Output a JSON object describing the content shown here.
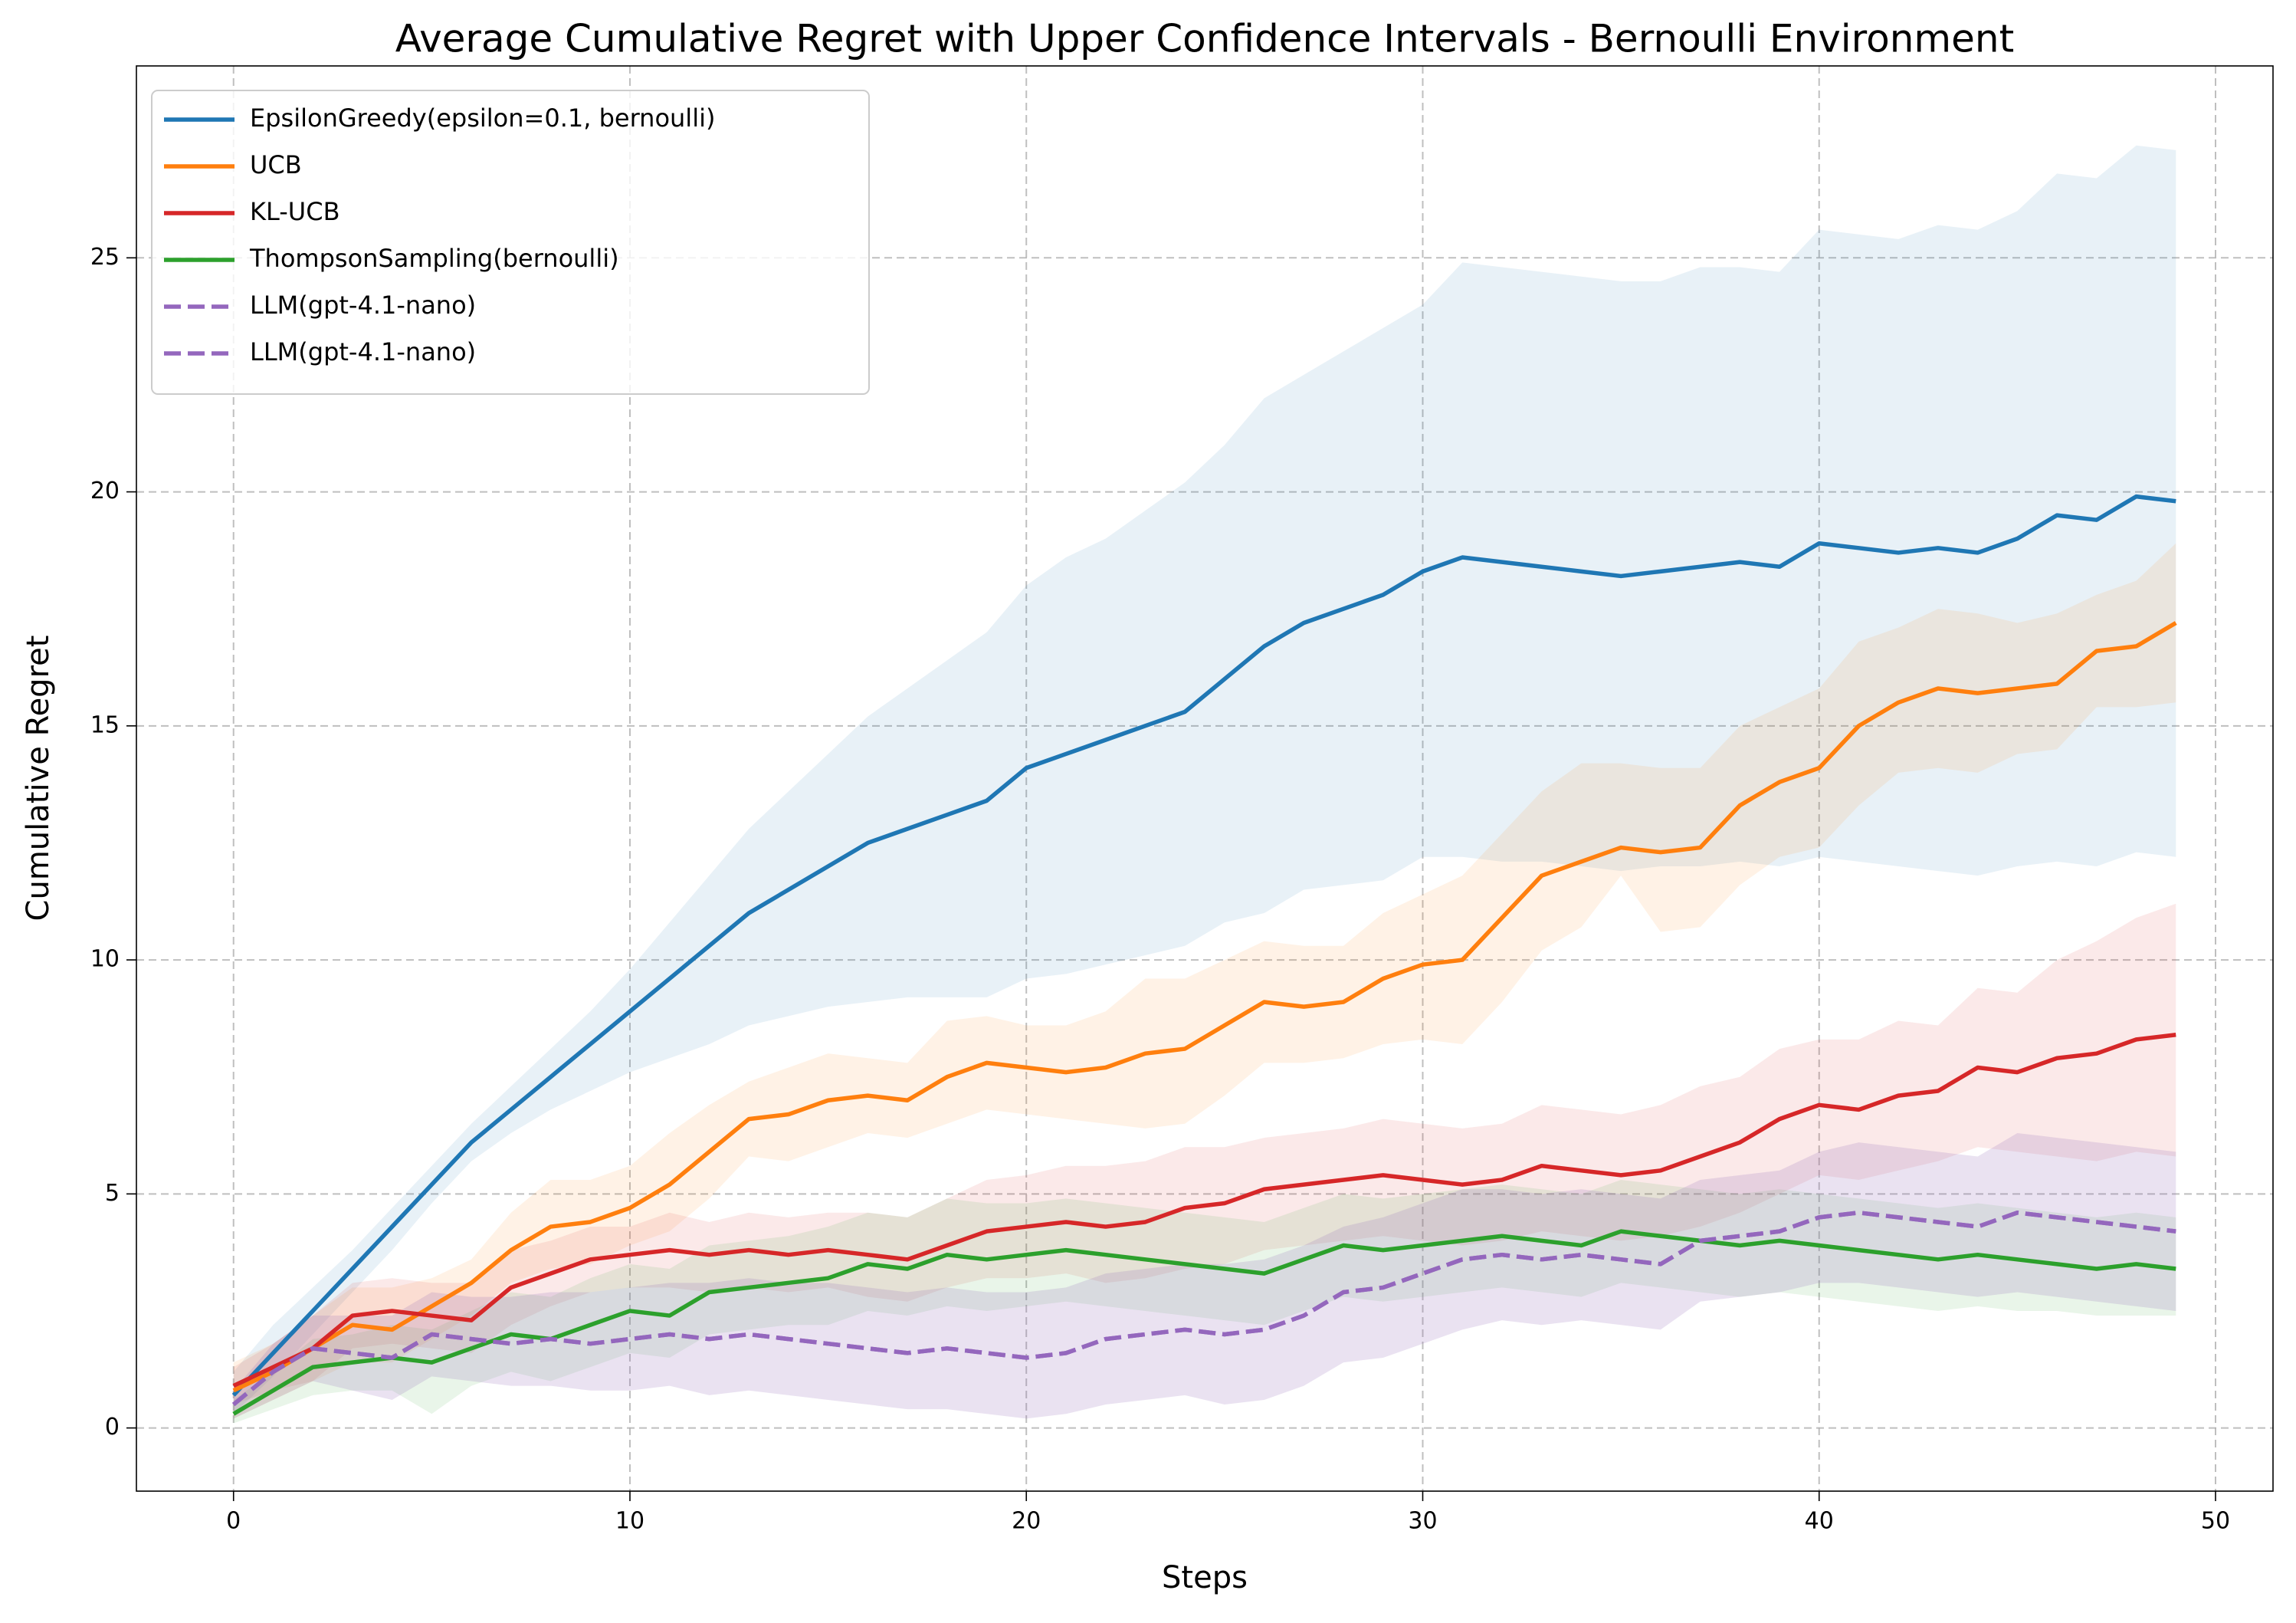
{
  "chart_data": {
    "type": "line",
    "title": "Average Cumulative Regret with Upper Confidence Intervals - Bernoulli Environment",
    "x_label": "Steps",
    "y_label": "Cumulative Regret",
    "x": [
      0,
      1,
      2,
      3,
      4,
      5,
      6,
      7,
      8,
      9,
      10,
      11,
      12,
      13,
      14,
      15,
      16,
      17,
      18,
      19,
      20,
      21,
      22,
      23,
      24,
      25,
      26,
      27,
      28,
      29,
      30,
      31,
      32,
      33,
      34,
      35,
      36,
      37,
      38,
      39,
      40,
      41,
      42,
      43,
      44,
      45,
      46,
      47,
      48,
      49
    ],
    "xlim": [
      -2.45,
      51.45
    ],
    "ylim": [
      -1.35,
      29.1
    ],
    "xticks": [
      0,
      10,
      20,
      30,
      40,
      50
    ],
    "yticks": [
      0,
      5,
      10,
      15,
      20,
      25
    ],
    "grid": true,
    "legend": "upper left",
    "series": [
      {
        "name": "EpsilonGreedy(epsilon=0.1, bernoulli)",
        "color": "#1f77b4",
        "linestyle": "solid",
        "values": [
          0.7,
          1.6,
          2.5,
          3.4,
          4.3,
          5.2,
          6.1,
          6.8,
          7.5,
          8.2,
          8.9,
          9.6,
          10.3,
          11.0,
          11.5,
          12.0,
          12.5,
          12.8,
          13.1,
          13.4,
          14.1,
          14.4,
          14.7,
          15.0,
          15.3,
          16.0,
          16.7,
          17.2,
          17.5,
          17.8,
          18.3,
          18.6,
          18.5,
          18.4,
          18.3,
          18.2,
          18.3,
          18.4,
          18.5,
          18.4,
          18.9,
          18.8,
          18.7,
          18.8,
          18.7,
          19.0,
          19.5,
          19.4,
          19.9,
          19.8
        ],
        "upper": [
          1.2,
          2.2,
          3.0,
          3.8,
          4.7,
          5.6,
          6.5,
          7.3,
          8.1,
          8.9,
          9.8,
          10.8,
          11.8,
          12.8,
          13.6,
          14.4,
          15.2,
          15.8,
          16.4,
          17.0,
          18.0,
          18.6,
          19.0,
          19.6,
          20.2,
          21.0,
          22.0,
          22.5,
          23.0,
          23.5,
          24.0,
          24.9,
          24.8,
          24.7,
          24.6,
          24.5,
          24.5,
          24.8,
          24.8,
          24.7,
          25.6,
          25.5,
          25.4,
          25.7,
          25.6,
          26.0,
          26.8,
          26.7,
          27.4,
          27.3
        ],
        "lower": [
          0.3,
          1.1,
          2.0,
          2.9,
          3.8,
          4.8,
          5.7,
          6.3,
          6.8,
          7.2,
          7.6,
          7.9,
          8.2,
          8.6,
          8.8,
          9.0,
          9.1,
          9.2,
          9.2,
          9.2,
          9.6,
          9.7,
          9.9,
          10.1,
          10.3,
          10.8,
          11.0,
          11.5,
          11.6,
          11.7,
          12.2,
          12.2,
          12.1,
          12.1,
          12.0,
          11.9,
          12.0,
          12.0,
          12.1,
          12.0,
          12.2,
          12.1,
          12.0,
          11.9,
          11.8,
          12.0,
          12.1,
          12.0,
          12.3,
          12.2
        ]
      },
      {
        "name": "UCB",
        "color": "#ff7f0e",
        "linestyle": "solid",
        "values": [
          0.8,
          1.2,
          1.7,
          2.2,
          2.1,
          2.6,
          3.1,
          3.8,
          4.3,
          4.4,
          4.7,
          5.2,
          5.9,
          6.6,
          6.7,
          7.0,
          7.1,
          7.0,
          7.5,
          7.8,
          7.7,
          7.6,
          7.7,
          8.0,
          8.1,
          8.6,
          9.1,
          9.0,
          9.1,
          9.6,
          9.9,
          10.0,
          10.9,
          11.8,
          12.1,
          12.4,
          12.3,
          12.4,
          13.3,
          13.8,
          14.1,
          15.0,
          15.5,
          15.8,
          15.7,
          15.8,
          15.9,
          16.6,
          16.7,
          17.2
        ],
        "upper": [
          1.4,
          1.8,
          2.4,
          3.0,
          3.0,
          3.2,
          3.6,
          4.6,
          5.3,
          5.3,
          5.6,
          6.3,
          6.9,
          7.4,
          7.7,
          8.0,
          7.9,
          7.8,
          8.7,
          8.8,
          8.6,
          8.6,
          8.9,
          9.6,
          9.6,
          10.0,
          10.4,
          10.3,
          10.3,
          11.0,
          11.4,
          11.8,
          12.7,
          13.6,
          14.2,
          14.2,
          14.1,
          14.1,
          15.0,
          15.4,
          15.8,
          16.8,
          17.1,
          17.5,
          17.4,
          17.2,
          17.4,
          17.8,
          18.1,
          18.9
        ],
        "lower": [
          0.2,
          0.6,
          1.0,
          1.4,
          1.4,
          1.9,
          2.4,
          3.1,
          3.4,
          3.5,
          3.9,
          4.2,
          4.9,
          5.8,
          5.7,
          6.0,
          6.3,
          6.2,
          6.5,
          6.8,
          6.7,
          6.6,
          6.5,
          6.4,
          6.5,
          7.1,
          7.8,
          7.8,
          7.9,
          8.2,
          8.3,
          8.2,
          9.1,
          10.2,
          10.7,
          11.8,
          10.6,
          10.7,
          11.6,
          12.2,
          12.4,
          13.3,
          14.0,
          14.1,
          14.0,
          14.4,
          14.5,
          15.4,
          15.4,
          15.5
        ]
      },
      {
        "name": "KL-UCB",
        "color": "#d62728",
        "linestyle": "solid",
        "values": [
          0.9,
          1.3,
          1.7,
          2.4,
          2.5,
          2.4,
          2.3,
          3.0,
          3.3,
          3.6,
          3.7,
          3.8,
          3.7,
          3.8,
          3.7,
          3.8,
          3.7,
          3.6,
          3.9,
          4.2,
          4.3,
          4.4,
          4.3,
          4.4,
          4.7,
          4.8,
          5.1,
          5.2,
          5.3,
          5.4,
          5.3,
          5.2,
          5.3,
          5.6,
          5.5,
          5.4,
          5.5,
          5.8,
          6.1,
          6.6,
          6.9,
          6.8,
          7.1,
          7.2,
          7.7,
          7.6,
          7.9,
          8.0,
          8.3,
          8.4
        ],
        "upper": [
          1.3,
          1.8,
          2.4,
          3.1,
          3.2,
          3.1,
          3.1,
          3.8,
          4.0,
          4.3,
          4.3,
          4.6,
          4.4,
          4.6,
          4.5,
          4.6,
          4.6,
          4.5,
          4.9,
          5.3,
          5.4,
          5.6,
          5.6,
          5.7,
          6.0,
          6.0,
          6.2,
          6.3,
          6.4,
          6.6,
          6.5,
          6.4,
          6.5,
          6.9,
          6.8,
          6.7,
          6.9,
          7.3,
          7.5,
          8.1,
          8.3,
          8.3,
          8.7,
          8.6,
          9.4,
          9.3,
          10.0,
          10.4,
          10.9,
          11.2
        ],
        "lower": [
          0.5,
          0.8,
          1.0,
          1.7,
          1.8,
          1.7,
          1.6,
          2.2,
          2.6,
          2.9,
          3.0,
          3.0,
          2.9,
          3.0,
          2.9,
          3.0,
          2.8,
          2.7,
          3.0,
          3.2,
          3.2,
          3.3,
          3.1,
          3.2,
          3.4,
          3.5,
          3.8,
          3.9,
          4.0,
          4.1,
          4.0,
          3.9,
          4.0,
          4.2,
          4.1,
          4.0,
          4.1,
          4.3,
          4.6,
          5.0,
          5.4,
          5.3,
          5.5,
          5.7,
          6.0,
          5.9,
          5.8,
          5.7,
          5.9,
          5.8
        ]
      },
      {
        "name": "ThompsonSampling(bernoulli)",
        "color": "#2ca02c",
        "linestyle": "solid",
        "values": [
          0.3,
          0.8,
          1.3,
          1.4,
          1.5,
          1.4,
          1.7,
          2.0,
          1.9,
          2.2,
          2.5,
          2.4,
          2.9,
          3.0,
          3.1,
          3.2,
          3.5,
          3.4,
          3.7,
          3.6,
          3.7,
          3.8,
          3.7,
          3.6,
          3.5,
          3.4,
          3.3,
          3.6,
          3.9,
          3.8,
          3.9,
          4.0,
          4.1,
          4.0,
          3.9,
          4.2,
          4.1,
          4.0,
          3.9,
          4.0,
          3.9,
          3.8,
          3.7,
          3.6,
          3.7,
          3.6,
          3.5,
          3.4,
          3.5,
          3.4
        ],
        "upper": [
          0.6,
          1.2,
          1.9,
          2.0,
          2.2,
          2.1,
          2.5,
          2.9,
          2.8,
          3.2,
          3.5,
          3.4,
          3.9,
          4.0,
          4.1,
          4.3,
          4.6,
          4.5,
          4.9,
          4.8,
          4.8,
          4.9,
          4.8,
          4.7,
          4.6,
          4.5,
          4.4,
          4.7,
          5.0,
          4.9,
          5.0,
          5.1,
          5.2,
          5.1,
          5.0,
          5.3,
          5.2,
          5.1,
          5.0,
          5.1,
          5.0,
          4.9,
          4.8,
          4.7,
          4.8,
          4.7,
          4.6,
          4.5,
          4.6,
          4.5
        ],
        "lower": [
          0.1,
          0.4,
          0.7,
          0.8,
          0.8,
          0.3,
          0.9,
          1.2,
          1.0,
          1.3,
          1.6,
          1.5,
          2.0,
          2.1,
          2.2,
          2.2,
          2.5,
          2.4,
          2.6,
          2.5,
          2.6,
          2.7,
          2.6,
          2.5,
          2.4,
          2.3,
          2.2,
          2.5,
          2.8,
          2.7,
          2.8,
          2.9,
          3.0,
          2.9,
          2.8,
          3.1,
          3.0,
          2.9,
          2.8,
          2.9,
          2.8,
          2.7,
          2.6,
          2.5,
          2.6,
          2.5,
          2.5,
          2.4,
          2.4,
          2.4
        ]
      },
      {
        "name": "LLM(gpt-4.1-nano)",
        "color": "#9467bd",
        "linestyle": "dashed",
        "values": [
          0.5,
          1.2,
          1.7,
          1.6,
          1.5,
          2.0,
          1.9,
          1.8,
          1.9,
          1.8,
          1.9,
          2.0,
          1.9,
          2.0,
          1.9,
          1.8,
          1.7,
          1.6,
          1.7,
          1.6,
          1.5,
          1.6,
          1.9,
          2.0,
          2.1,
          2.0,
          2.1,
          2.4,
          2.9,
          3.0,
          3.3,
          3.6,
          3.7,
          3.6,
          3.7,
          3.6,
          3.5,
          4.0,
          4.1,
          4.2,
          4.5,
          4.6,
          4.5,
          4.4,
          4.3,
          4.6,
          4.5,
          4.4,
          4.3,
          4.2
        ],
        "upper": [
          0.8,
          1.8,
          2.4,
          2.4,
          2.4,
          2.9,
          2.8,
          2.8,
          2.9,
          2.9,
          3.0,
          3.1,
          3.1,
          3.2,
          3.1,
          3.1,
          3.0,
          2.9,
          3.0,
          2.9,
          2.9,
          3.0,
          3.3,
          3.4,
          3.5,
          3.5,
          3.6,
          3.9,
          4.3,
          4.5,
          4.8,
          5.1,
          5.1,
          5.0,
          5.1,
          5.0,
          4.9,
          5.3,
          5.4,
          5.5,
          5.9,
          6.1,
          6.0,
          5.9,
          5.8,
          6.3,
          6.2,
          6.1,
          6.0,
          5.9
        ],
        "lower": [
          0.2,
          0.6,
          1.0,
          0.8,
          0.6,
          1.1,
          1.0,
          0.9,
          0.9,
          0.8,
          0.8,
          0.9,
          0.7,
          0.8,
          0.7,
          0.6,
          0.5,
          0.4,
          0.4,
          0.3,
          0.2,
          0.3,
          0.5,
          0.6,
          0.7,
          0.5,
          0.6,
          0.9,
          1.4,
          1.5,
          1.8,
          2.1,
          2.3,
          2.2,
          2.3,
          2.2,
          2.1,
          2.7,
          2.8,
          2.9,
          3.1,
          3.1,
          3.0,
          2.9,
          2.8,
          2.9,
          2.8,
          2.7,
          2.6,
          2.5
        ]
      },
      {
        "name": "LLM(gpt-4.1-nano)",
        "color": "#9467bd",
        "linestyle": "dashed",
        "values": [
          0.5,
          1.2,
          1.7,
          1.6,
          1.5,
          2.0,
          1.9,
          1.8,
          1.9,
          1.8,
          1.9,
          2.0,
          1.9,
          2.0,
          1.9,
          1.8,
          1.7,
          1.6,
          1.7,
          1.6,
          1.5,
          1.6,
          1.9,
          2.0,
          2.1,
          2.0,
          2.1,
          2.4,
          2.9,
          3.0,
          3.3,
          3.6,
          3.7,
          3.6,
          3.7,
          3.6,
          3.5,
          4.0,
          4.1,
          4.2,
          4.5,
          4.6,
          4.5,
          4.4,
          4.3,
          4.6,
          4.5,
          4.4,
          4.3,
          4.2
        ],
        "upper": [
          0.8,
          1.8,
          2.4,
          2.4,
          2.4,
          2.9,
          2.8,
          2.8,
          2.9,
          2.9,
          3.0,
          3.1,
          3.1,
          3.2,
          3.1,
          3.1,
          3.0,
          2.9,
          3.0,
          2.9,
          2.9,
          3.0,
          3.3,
          3.4,
          3.5,
          3.5,
          3.6,
          3.9,
          4.3,
          4.5,
          4.8,
          5.1,
          5.1,
          5.0,
          5.1,
          5.0,
          4.9,
          5.3,
          5.4,
          5.5,
          5.9,
          6.1,
          6.0,
          5.9,
          5.8,
          6.3,
          6.2,
          6.1,
          6.0,
          5.9
        ],
        "lower": [
          0.2,
          0.6,
          1.0,
          0.8,
          0.6,
          1.1,
          1.0,
          0.9,
          0.9,
          0.8,
          0.8,
          0.9,
          0.7,
          0.8,
          0.7,
          0.6,
          0.5,
          0.4,
          0.4,
          0.3,
          0.2,
          0.3,
          0.5,
          0.6,
          0.7,
          0.5,
          0.6,
          0.9,
          1.4,
          1.5,
          1.8,
          2.1,
          2.3,
          2.2,
          2.3,
          2.2,
          2.1,
          2.7,
          2.8,
          2.9,
          3.1,
          3.1,
          3.0,
          2.9,
          2.8,
          2.9,
          2.8,
          2.7,
          2.6,
          2.5
        ]
      }
    ]
  }
}
